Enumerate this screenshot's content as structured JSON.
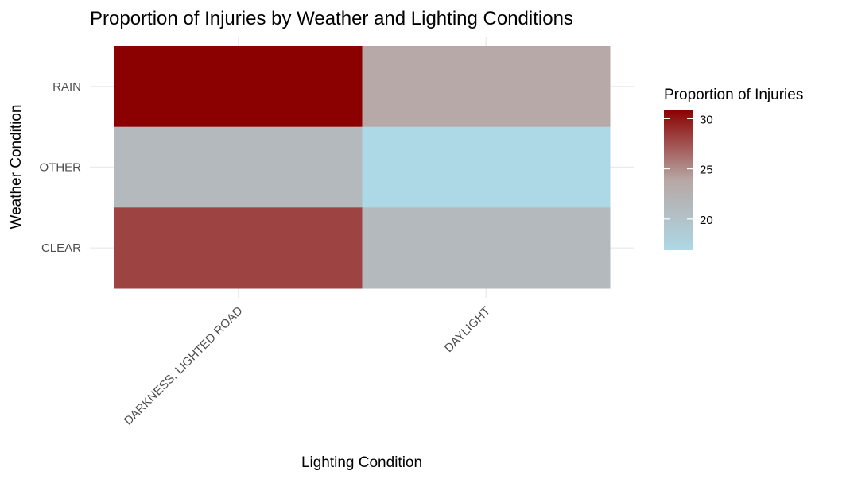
{
  "chart_data": {
    "type": "heatmap",
    "title": "Proportion of Injuries by Weather and Lighting Conditions",
    "xlabel": "Lighting Condition",
    "ylabel": "Weather Condition",
    "x_categories": [
      "DARKNESS, LIGHTED ROAD",
      "DAYLIGHT"
    ],
    "y_categories": [
      "CLEAR",
      "OTHER",
      "RAIN"
    ],
    "values": [
      {
        "x": "DARKNESS, LIGHTED ROAD",
        "y": "RAIN",
        "value": 30.9
      },
      {
        "x": "DAYLIGHT",
        "y": "RAIN",
        "value": 23.6
      },
      {
        "x": "DARKNESS, LIGHTED ROAD",
        "y": "OTHER",
        "value": 21.3
      },
      {
        "x": "DAYLIGHT",
        "y": "OTHER",
        "value": 16.9
      },
      {
        "x": "DARKNESS, LIGHTED ROAD",
        "y": "CLEAR",
        "value": 28.1
      },
      {
        "x": "DAYLIGHT",
        "y": "CLEAR",
        "value": 21.3
      }
    ],
    "legend": {
      "title": "Proportion of Injuries",
      "ticks": [
        20,
        25,
        30
      ],
      "range": [
        16.9,
        30.9
      ],
      "low_color": "#add8e6",
      "mid_color": "#b7a7a4",
      "high_color": "#8b0000",
      "placement": "right"
    },
    "grid": true
  }
}
